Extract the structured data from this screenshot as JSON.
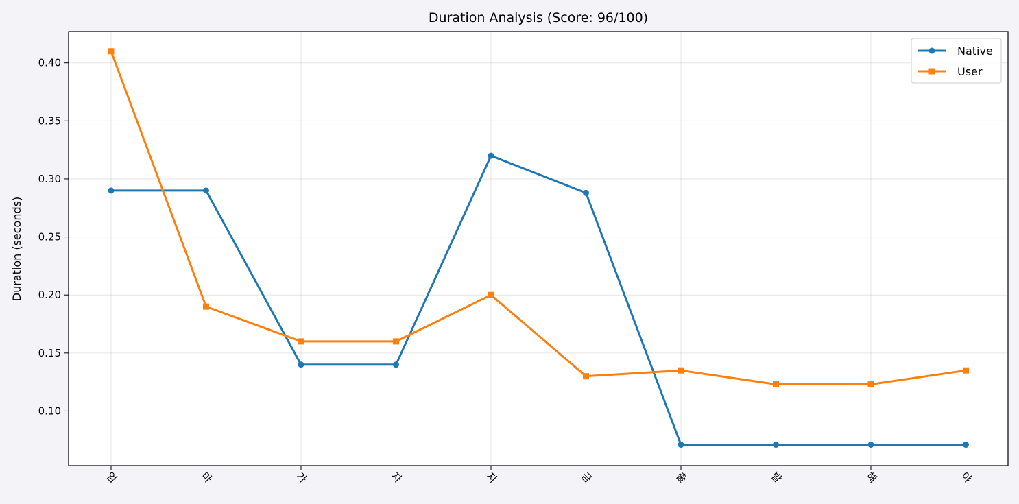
{
  "chart_data": {
    "type": "line",
    "title": "Duration Analysis (Score: 96/100)",
    "xlabel": "",
    "ylabel": "Duration (seconds)",
    "categories": [
      "엄",
      "마",
      "가",
      "자",
      "지",
      "금",
      "출",
      "발",
      "해",
      "야"
    ],
    "ylim": [
      0.053,
      0.427
    ],
    "yticks": [
      0.1,
      0.15,
      0.2,
      0.25,
      0.3,
      0.35,
      0.4
    ],
    "ytick_labels": [
      "0.10",
      "0.15",
      "0.20",
      "0.25",
      "0.30",
      "0.35",
      "0.40"
    ],
    "grid": true,
    "legend_position": "top-right",
    "series": [
      {
        "name": "Native",
        "color": "#1f77b4",
        "marker": "circle",
        "values": [
          0.29,
          0.29,
          0.14,
          0.14,
          0.32,
          0.288,
          0.071,
          0.071,
          0.071,
          0.071
        ]
      },
      {
        "name": "User",
        "color": "#ff7f0e",
        "marker": "square",
        "values": [
          0.41,
          0.19,
          0.16,
          0.16,
          0.2,
          0.13,
          0.135,
          0.123,
          0.123,
          0.135
        ]
      }
    ]
  }
}
